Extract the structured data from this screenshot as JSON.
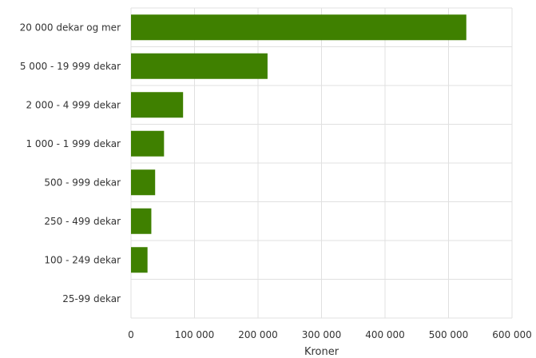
{
  "chart_data": {
    "type": "bar",
    "orientation": "horizontal",
    "categories": [
      "20 000 dekar og mer",
      "5 000 - 19 999 dekar",
      "2 000 - 4 999 dekar",
      "1 000 - 1 999 dekar",
      "500 - 999 dekar",
      "250 - 499 dekar",
      "100 - 249 dekar",
      "25-99 dekar"
    ],
    "values": [
      528000,
      215000,
      82000,
      52000,
      38000,
      32000,
      26000,
      0
    ],
    "xlabel": "Kroner",
    "ylabel": "",
    "xlim": [
      0,
      600000
    ],
    "xticks": [
      {
        "value": 0,
        "label": "0"
      },
      {
        "value": 100000,
        "label": "100 000"
      },
      {
        "value": 200000,
        "label": "200 000"
      },
      {
        "value": 300000,
        "label": "300 000"
      },
      {
        "value": 400000,
        "label": "400 000"
      },
      {
        "value": 500000,
        "label": "500 000"
      },
      {
        "value": 600000,
        "label": "600 000"
      }
    ],
    "grid": true,
    "legend": "none",
    "bar_color": "#3f8000",
    "grid_color": "#e0e0e0"
  }
}
